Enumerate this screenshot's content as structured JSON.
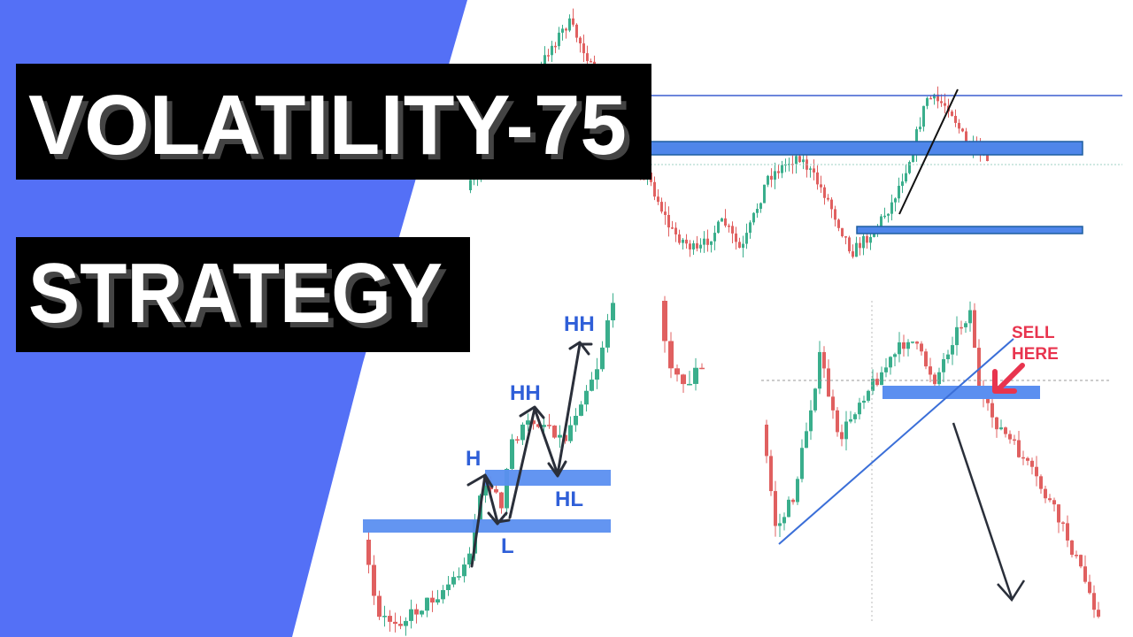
{
  "title_lines": [
    "VOLATILITY-75",
    "STRATEGY"
  ],
  "labels": {
    "hh_upper": "HH",
    "hh_lower": "HH",
    "h": "H",
    "hl": "HL",
    "l": "L"
  },
  "sell_label": [
    "SELL",
    "HERE"
  ]
}
